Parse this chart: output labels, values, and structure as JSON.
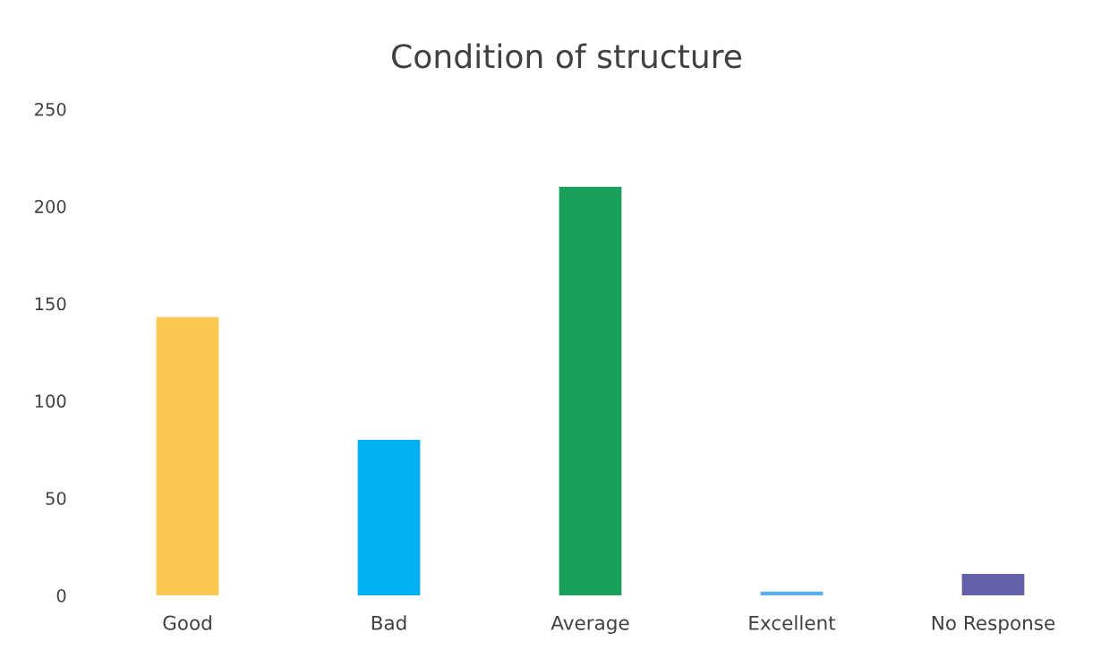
{
  "chart_data": {
    "type": "bar",
    "title": "Condition of structure",
    "categories": [
      "Good",
      "Bad",
      "Average",
      "Excellent",
      "No Response"
    ],
    "values": [
      143,
      80,
      210,
      2,
      11
    ],
    "colors": [
      "#fbc952",
      "#00b0f0",
      "#19a05a",
      "#5aaeea",
      "#6460a8"
    ],
    "ylim": [
      0,
      250
    ],
    "yticks": [
      0,
      50,
      100,
      150,
      200,
      250
    ],
    "grid": false,
    "legend": false
  }
}
